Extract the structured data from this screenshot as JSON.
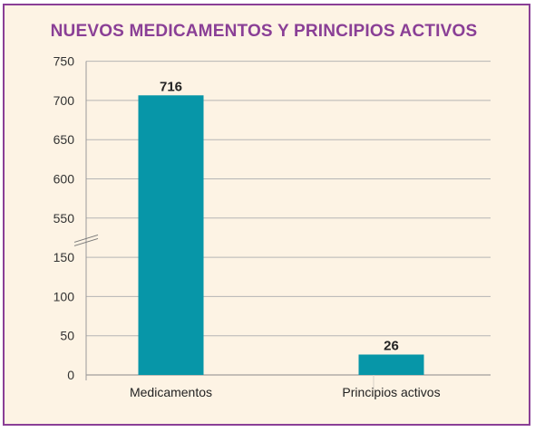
{
  "chart_data": {
    "type": "bar",
    "title": "NUEVOS MEDICAMENTOS Y PRINCIPIOS ACTIVOS",
    "categories": [
      "Medicamentos",
      "Principios activos"
    ],
    "values": [
      716,
      26
    ],
    "data_labels": [
      "716",
      "26"
    ],
    "y_ticks_lower": [
      "0",
      "50",
      "100",
      "150"
    ],
    "y_ticks_upper": [
      "550",
      "600",
      "650",
      "700",
      "750"
    ],
    "axis_break": [
      150,
      550
    ],
    "ylim": [
      0,
      750
    ],
    "grid": true,
    "bar_color": "#0796a8",
    "title_color": "#8a3f96",
    "background_color": "#fdf3e4"
  }
}
